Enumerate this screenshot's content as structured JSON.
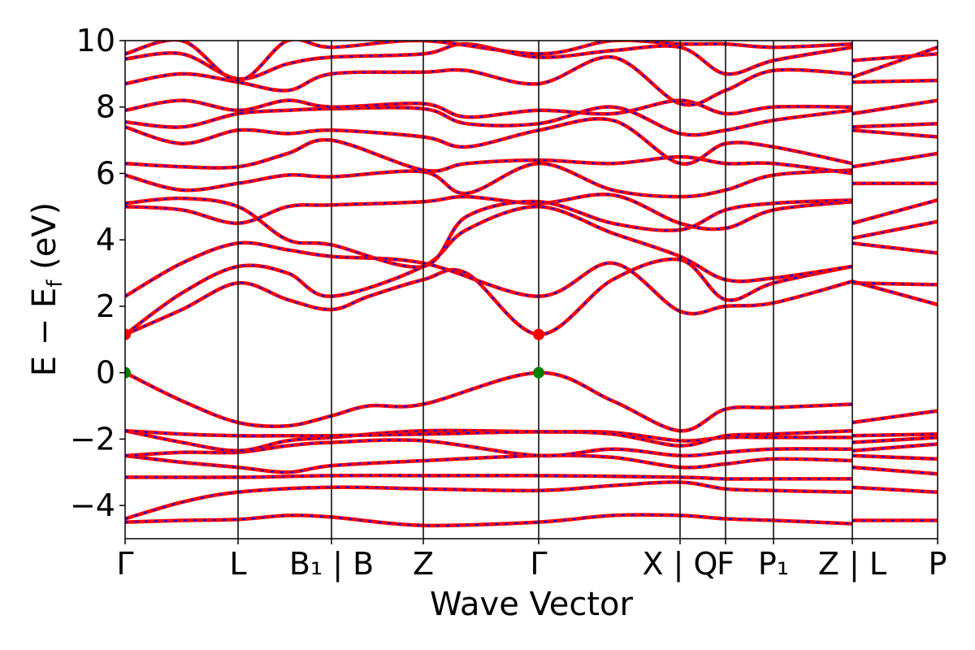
{
  "chart_data": {
    "type": "line",
    "title": "",
    "xlabel": "Wave Vector",
    "ylabel_main": "E − E",
    "ylabel_sub": "f",
    "ylabel_unit": " (eV)",
    "ylim": [
      -5,
      10
    ],
    "y_ticks": [
      -4,
      -2,
      0,
      2,
      4,
      6,
      8,
      10
    ],
    "y_tick_labels": [
      "−4",
      "−2",
      "0",
      "2",
      "4",
      "6",
      "8",
      "10"
    ],
    "xlim": [
      0,
      1
    ],
    "kpath_ticks": [
      {
        "x": 0.0,
        "label": "Γ"
      },
      {
        "x": 0.139,
        "label": "L"
      },
      {
        "x": 0.254,
        "label": "B₁ | B"
      },
      {
        "x": 0.367,
        "label": "Z"
      },
      {
        "x": 0.509,
        "label": "Γ"
      },
      {
        "x": 0.683,
        "label": "X | Q"
      },
      {
        "x": 0.739,
        "label": "F"
      },
      {
        "x": 0.798,
        "label": "P₁"
      },
      {
        "x": 0.895,
        "label": "Z | L"
      },
      {
        "x": 1.0,
        "label": "P"
      }
    ],
    "line_colors": {
      "primary": "#ff0000",
      "overlay": "#0000ff"
    },
    "special_points": [
      {
        "name": "conduction band minimum",
        "x": 0.0,
        "y": 1.15,
        "color": "#ff0000"
      },
      {
        "name": "conduction band minimum",
        "x": 0.509,
        "y": 1.15,
        "color": "#ff0000"
      },
      {
        "name": "valence band maximum",
        "x": 0.0,
        "y": 0.0,
        "color": "#008000"
      },
      {
        "name": "valence band maximum",
        "x": 0.509,
        "y": 0.0,
        "color": "#008000"
      }
    ],
    "bands": [
      [
        [
          0,
          -4.5
        ],
        [
          0.07,
          -4.45
        ],
        [
          0.139,
          -4.42
        ],
        [
          0.2,
          -4.3
        ],
        [
          0.254,
          -4.35
        ],
        [
          0.367,
          -4.6
        ],
        [
          0.509,
          -4.5
        ],
        [
          0.6,
          -4.3
        ],
        [
          0.683,
          -4.3
        ],
        [
          0.739,
          -4.4
        ],
        [
          0.798,
          -4.45
        ],
        [
          0.895,
          -4.55
        ]
      ],
      [
        [
          0.895,
          -4.45
        ],
        [
          1.0,
          -4.45
        ]
      ],
      [
        [
          0,
          -4.4
        ],
        [
          0.07,
          -3.9
        ],
        [
          0.139,
          -3.6
        ],
        [
          0.254,
          -3.45
        ],
        [
          0.367,
          -3.5
        ],
        [
          0.509,
          -3.55
        ],
        [
          0.6,
          -3.4
        ],
        [
          0.683,
          -3.3
        ],
        [
          0.739,
          -3.5
        ],
        [
          0.798,
          -3.55
        ],
        [
          0.895,
          -3.6
        ]
      ],
      [
        [
          0.895,
          -3.45
        ],
        [
          1.0,
          -3.6
        ]
      ],
      [
        [
          0,
          -3.15
        ],
        [
          0.139,
          -3.15
        ],
        [
          0.254,
          -3.1
        ],
        [
          0.367,
          -3.1
        ],
        [
          0.509,
          -3.1
        ],
        [
          0.683,
          -3.15
        ],
        [
          0.739,
          -3.2
        ],
        [
          0.798,
          -3.2
        ],
        [
          0.895,
          -3.2
        ]
      ],
      [
        [
          0.895,
          -2.85
        ],
        [
          1.0,
          -3.05
        ]
      ],
      [
        [
          0,
          -2.5
        ],
        [
          0.07,
          -2.7
        ],
        [
          0.139,
          -2.85
        ],
        [
          0.2,
          -3.0
        ],
        [
          0.254,
          -2.8
        ],
        [
          0.367,
          -2.65
        ],
        [
          0.509,
          -2.5
        ],
        [
          0.6,
          -2.55
        ],
        [
          0.683,
          -2.85
        ],
        [
          0.739,
          -2.75
        ],
        [
          0.798,
          -2.6
        ],
        [
          0.895,
          -2.65
        ]
      ],
      [
        [
          0.895,
          -2.5
        ],
        [
          1.0,
          -2.6
        ]
      ],
      [
        [
          0,
          -2.5
        ],
        [
          0.07,
          -2.4
        ],
        [
          0.139,
          -2.4
        ],
        [
          0.2,
          -2.2
        ],
        [
          0.254,
          -2.1
        ],
        [
          0.367,
          -2.05
        ],
        [
          0.509,
          -2.5
        ],
        [
          0.6,
          -2.3
        ],
        [
          0.683,
          -2.5
        ],
        [
          0.739,
          -2.4
        ],
        [
          0.798,
          -2.3
        ],
        [
          0.895,
          -2.3
        ]
      ],
      [
        [
          0.895,
          -2.35
        ],
        [
          1.0,
          -2.15
        ]
      ],
      [
        [
          0,
          -1.75
        ],
        [
          0.07,
          -2.1
        ],
        [
          0.139,
          -2.35
        ],
        [
          0.2,
          -2.05
        ],
        [
          0.254,
          -1.95
        ],
        [
          0.367,
          -1.75
        ],
        [
          0.509,
          -1.78
        ],
        [
          0.6,
          -1.8
        ],
        [
          0.683,
          -2.05
        ],
        [
          0.739,
          -1.95
        ],
        [
          0.798,
          -1.95
        ],
        [
          0.895,
          -1.95
        ]
      ],
      [
        [
          0.895,
          -2.1
        ],
        [
          1.0,
          -1.95
        ]
      ],
      [
        [
          0,
          -1.75
        ],
        [
          0.07,
          -1.85
        ],
        [
          0.139,
          -1.9
        ],
        [
          0.2,
          -1.9
        ],
        [
          0.254,
          -1.9
        ],
        [
          0.367,
          -1.85
        ],
        [
          0.509,
          -1.78
        ],
        [
          0.6,
          -1.85
        ],
        [
          0.683,
          -2.2
        ],
        [
          0.739,
          -1.9
        ],
        [
          0.798,
          -1.85
        ],
        [
          0.895,
          -1.75
        ]
      ],
      [
        [
          0.895,
          -1.9
        ],
        [
          1.0,
          -1.85
        ]
      ],
      [
        [
          0,
          0.0
        ],
        [
          0.07,
          -0.85
        ],
        [
          0.139,
          -1.5
        ],
        [
          0.2,
          -1.6
        ],
        [
          0.254,
          -1.3
        ],
        [
          0.3,
          -1.0
        ],
        [
          0.367,
          -0.95
        ],
        [
          0.509,
          0.0
        ],
        [
          0.6,
          -0.85
        ],
        [
          0.683,
          -1.75
        ],
        [
          0.739,
          -1.1
        ],
        [
          0.798,
          -1.05
        ],
        [
          0.895,
          -0.95
        ]
      ],
      [
        [
          0.895,
          -1.5
        ],
        [
          1.0,
          -1.15
        ]
      ],
      [
        [
          0,
          1.15
        ],
        [
          0.07,
          1.9
        ],
        [
          0.139,
          2.7
        ],
        [
          0.2,
          2.2
        ],
        [
          0.254,
          1.9
        ],
        [
          0.3,
          2.3
        ],
        [
          0.367,
          2.8
        ],
        [
          0.42,
          3.0
        ],
        [
          0.509,
          1.15
        ],
        [
          0.6,
          2.8
        ],
        [
          0.683,
          3.4
        ],
        [
          0.739,
          2.2
        ],
        [
          0.798,
          2.7
        ],
        [
          0.895,
          3.2
        ]
      ],
      [
        [
          0.895,
          2.7
        ],
        [
          1.0,
          2.65
        ]
      ],
      [
        [
          0,
          1.15
        ],
        [
          0.07,
          2.4
        ],
        [
          0.139,
          3.2
        ],
        [
          0.2,
          3.0
        ],
        [
          0.254,
          2.3
        ],
        [
          0.367,
          3.2
        ],
        [
          0.42,
          4.3
        ],
        [
          0.509,
          5.0
        ],
        [
          0.6,
          4.2
        ],
        [
          0.683,
          3.5
        ],
        [
          0.739,
          2.8
        ],
        [
          0.798,
          2.85
        ],
        [
          0.895,
          3.2
        ]
      ],
      [
        [
          0.895,
          3.9
        ],
        [
          1.0,
          3.6
        ]
      ],
      [
        [
          0,
          2.3
        ],
        [
          0.07,
          3.3
        ],
        [
          0.139,
          3.9
        ],
        [
          0.2,
          3.7
        ],
        [
          0.254,
          3.5
        ],
        [
          0.367,
          3.3
        ],
        [
          0.509,
          2.3
        ],
        [
          0.6,
          3.3
        ],
        [
          0.683,
          1.85
        ],
        [
          0.739,
          2.0
        ],
        [
          0.798,
          2.1
        ],
        [
          0.895,
          2.75
        ]
      ],
      [
        [
          0.895,
          2.75
        ],
        [
          1.0,
          2.05
        ]
      ],
      [
        [
          0,
          5.0
        ],
        [
          0.07,
          4.9
        ],
        [
          0.139,
          4.5
        ],
        [
          0.2,
          5.0
        ],
        [
          0.254,
          5.05
        ],
        [
          0.367,
          5.15
        ],
        [
          0.42,
          5.3
        ],
        [
          0.509,
          5.1
        ],
        [
          0.6,
          5.35
        ],
        [
          0.683,
          4.5
        ],
        [
          0.739,
          4.35
        ],
        [
          0.798,
          4.9
        ],
        [
          0.895,
          5.15
        ]
      ],
      [
        [
          0.895,
          4.05
        ],
        [
          1.0,
          4.55
        ]
      ],
      [
        [
          0,
          5.1
        ],
        [
          0.07,
          5.25
        ],
        [
          0.139,
          5.0
        ],
        [
          0.2,
          4.0
        ],
        [
          0.254,
          3.85
        ],
        [
          0.367,
          3.2
        ],
        [
          0.42,
          4.7
        ],
        [
          0.509,
          5.15
        ],
        [
          0.6,
          4.5
        ],
        [
          0.683,
          4.3
        ],
        [
          0.739,
          4.9
        ],
        [
          0.798,
          5.1
        ],
        [
          0.895,
          5.2
        ]
      ],
      [
        [
          0.895,
          4.5
        ],
        [
          1.0,
          5.2
        ]
      ],
      [
        [
          0,
          5.95
        ],
        [
          0.07,
          5.5
        ],
        [
          0.139,
          5.7
        ],
        [
          0.2,
          5.95
        ],
        [
          0.254,
          5.9
        ],
        [
          0.367,
          6.05
        ],
        [
          0.42,
          5.4
        ],
        [
          0.509,
          6.3
        ],
        [
          0.6,
          5.5
        ],
        [
          0.683,
          5.3
        ],
        [
          0.739,
          5.5
        ],
        [
          0.798,
          5.95
        ],
        [
          0.895,
          6.1
        ]
      ],
      [
        [
          0.895,
          5.7
        ],
        [
          1.0,
          5.7
        ]
      ],
      [
        [
          0,
          6.3
        ],
        [
          0.07,
          6.2
        ],
        [
          0.139,
          6.2
        ],
        [
          0.2,
          6.6
        ],
        [
          0.254,
          7.0
        ],
        [
          0.367,
          6.1
        ],
        [
          0.42,
          6.3
        ],
        [
          0.509,
          6.4
        ],
        [
          0.6,
          6.3
        ],
        [
          0.683,
          6.5
        ],
        [
          0.739,
          6.3
        ],
        [
          0.798,
          6.3
        ],
        [
          0.895,
          6.0
        ]
      ],
      [
        [
          0.895,
          6.2
        ],
        [
          1.0,
          6.6
        ]
      ],
      [
        [
          0,
          7.4
        ],
        [
          0.07,
          6.9
        ],
        [
          0.139,
          7.3
        ],
        [
          0.2,
          7.2
        ],
        [
          0.254,
          7.3
        ],
        [
          0.367,
          7.1
        ],
        [
          0.42,
          6.8
        ],
        [
          0.509,
          7.3
        ],
        [
          0.6,
          7.6
        ],
        [
          0.683,
          6.3
        ],
        [
          0.739,
          6.9
        ],
        [
          0.798,
          6.8
        ],
        [
          0.895,
          6.3
        ]
      ],
      [
        [
          0.895,
          7.3
        ],
        [
          1.0,
          7.1
        ]
      ],
      [
        [
          0,
          7.55
        ],
        [
          0.07,
          7.4
        ],
        [
          0.139,
          7.8
        ],
        [
          0.2,
          7.9
        ],
        [
          0.254,
          7.95
        ],
        [
          0.367,
          7.95
        ],
        [
          0.42,
          7.5
        ],
        [
          0.509,
          7.5
        ],
        [
          0.6,
          8.0
        ],
        [
          0.683,
          7.2
        ],
        [
          0.739,
          7.3
        ],
        [
          0.798,
          7.6
        ],
        [
          0.895,
          7.9
        ]
      ],
      [
        [
          0.895,
          7.4
        ],
        [
          1.0,
          7.5
        ]
      ],
      [
        [
          0,
          7.9
        ],
        [
          0.07,
          8.2
        ],
        [
          0.139,
          7.9
        ],
        [
          0.2,
          8.2
        ],
        [
          0.254,
          8.0
        ],
        [
          0.367,
          8.1
        ],
        [
          0.42,
          7.7
        ],
        [
          0.509,
          7.9
        ],
        [
          0.6,
          7.8
        ],
        [
          0.683,
          8.2
        ],
        [
          0.739,
          7.8
        ],
        [
          0.798,
          8.0
        ],
        [
          0.895,
          8.0
        ]
      ],
      [
        [
          0.895,
          7.8
        ],
        [
          1.0,
          8.2
        ]
      ],
      [
        [
          0,
          8.7
        ],
        [
          0.07,
          9.0
        ],
        [
          0.139,
          8.75
        ],
        [
          0.2,
          8.5
        ],
        [
          0.254,
          9.0
        ],
        [
          0.367,
          9.05
        ],
        [
          0.42,
          9.1
        ],
        [
          0.509,
          8.7
        ],
        [
          0.6,
          9.5
        ],
        [
          0.683,
          8.1
        ],
        [
          0.739,
          8.5
        ],
        [
          0.798,
          9.1
        ],
        [
          0.895,
          9.0
        ]
      ],
      [
        [
          0.895,
          8.75
        ],
        [
          1.0,
          8.8
        ]
      ],
      [
        [
          0,
          9.45
        ],
        [
          0.07,
          9.6
        ],
        [
          0.139,
          8.85
        ],
        [
          0.2,
          9.3
        ],
        [
          0.254,
          9.5
        ],
        [
          0.367,
          9.6
        ],
        [
          0.42,
          9.9
        ],
        [
          0.509,
          9.5
        ],
        [
          0.6,
          9.7
        ],
        [
          0.683,
          9.8
        ],
        [
          0.739,
          9.0
        ],
        [
          0.798,
          9.4
        ],
        [
          0.895,
          9.8
        ]
      ],
      [
        [
          0.895,
          9.4
        ],
        [
          1.0,
          9.6
        ]
      ],
      [
        [
          0,
          9.6
        ],
        [
          0.07,
          10.0
        ],
        [
          0.139,
          8.8
        ],
        [
          0.2,
          10.0
        ],
        [
          0.254,
          9.8
        ],
        [
          0.367,
          10.0
        ],
        [
          0.509,
          9.6
        ],
        [
          0.6,
          10.0
        ],
        [
          0.683,
          9.9
        ],
        [
          0.739,
          9.9
        ],
        [
          0.798,
          9.8
        ],
        [
          0.895,
          9.9
        ]
      ],
      [
        [
          0.895,
          8.9
        ],
        [
          1.0,
          9.8
        ]
      ]
    ]
  }
}
